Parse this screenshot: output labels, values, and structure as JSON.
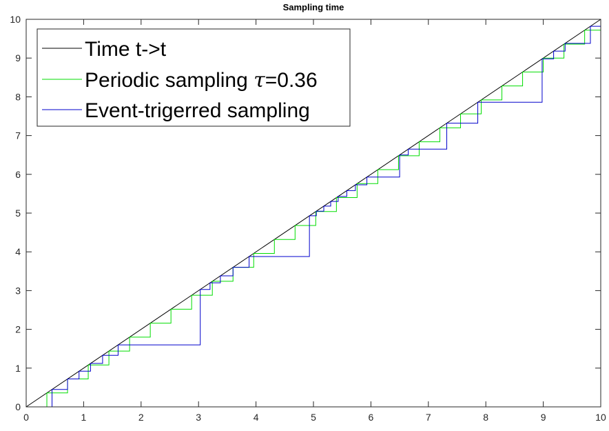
{
  "chart_data": {
    "type": "line",
    "title": "Sampling time",
    "xlabel": "",
    "ylabel": "",
    "xlim": [
      0,
      10
    ],
    "ylim": [
      0,
      10
    ],
    "xticks": [
      0,
      1,
      2,
      3,
      4,
      5,
      6,
      7,
      8,
      9,
      10
    ],
    "yticks": [
      0,
      1,
      2,
      3,
      4,
      5,
      6,
      7,
      8,
      9,
      10
    ],
    "grid": false,
    "legend_position": "top-left",
    "legend": [
      {
        "label": "Time t->t",
        "color": "#000000"
      },
      {
        "label_prefix": "Periodic sampling ",
        "label_symbol": "τ",
        "label_suffix": "=0.36",
        "color": "#00dd00"
      },
      {
        "label": "Event-trigerred sampling",
        "color": "#0000cc"
      }
    ],
    "series": [
      {
        "name": "Time t->t",
        "color": "#000000",
        "style": "line",
        "x": [
          0,
          10
        ],
        "y": [
          0,
          10
        ]
      },
      {
        "name": "Periodic sampling τ=0.36",
        "color": "#00dd00",
        "style": "step",
        "sample_times": [
          0,
          0.36,
          0.72,
          1.08,
          1.44,
          1.8,
          2.16,
          2.52,
          2.88,
          3.24,
          3.6,
          3.96,
          4.32,
          4.68,
          5.04,
          5.4,
          5.76,
          6.12,
          6.48,
          6.84,
          7.2,
          7.56,
          7.92,
          8.28,
          8.64,
          9.0,
          9.36,
          9.72
        ],
        "x_end": 10
      },
      {
        "name": "Event-trigerred sampling",
        "color": "#0000cc",
        "style": "step",
        "sample_times": [
          0,
          0.45,
          0.72,
          0.92,
          1.12,
          1.33,
          1.6,
          3.03,
          3.2,
          3.38,
          3.6,
          3.88,
          4.93,
          5.05,
          5.18,
          5.3,
          5.43,
          5.58,
          5.73,
          5.93,
          6.5,
          6.65,
          7.32,
          7.86,
          8.98,
          9.18,
          9.38,
          9.82
        ],
        "x_end": 10
      }
    ]
  }
}
